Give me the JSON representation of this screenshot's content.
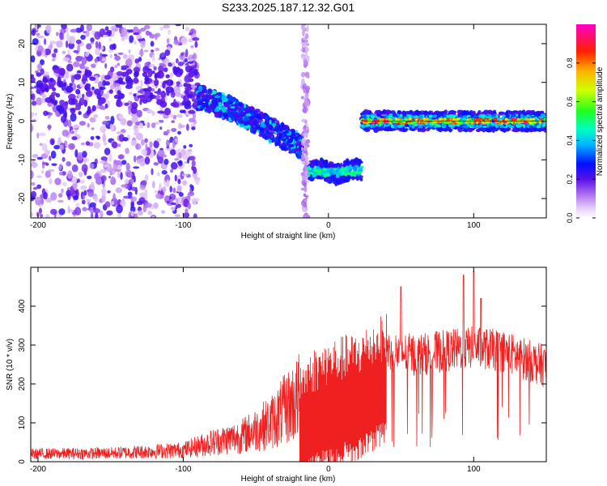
{
  "title": "S233.2025.187.12.32.G01",
  "chart_data": [
    {
      "type": "heatmap",
      "xlabel": "Height of straight line (km)",
      "ylabel": "Frequency (Hz)",
      "xlim": [
        -205,
        150
      ],
      "ylim": [
        -25,
        25
      ],
      "x_ticks": [
        -200,
        -100,
        0,
        100
      ],
      "y_ticks": [
        -20,
        -10,
        0,
        10,
        20
      ],
      "colorbar": {
        "label": "Normalized spectral amplitude",
        "range": [
          0,
          1
        ],
        "ticks": [
          "0.0",
          "0.2",
          "0.4",
          "0.6",
          "0.8"
        ]
      },
      "regions": [
        {
          "name": "scattered-noise",
          "x": [
            -205,
            -90
          ],
          "freq": [
            -25,
            25
          ],
          "amplitude": 0.25
        },
        {
          "name": "descending-band",
          "x": [
            -90,
            -18
          ],
          "freq_start": 6,
          "freq_end": -7,
          "amplitude": 0.35
        },
        {
          "name": "vertical-streak",
          "x": [
            -18,
            -14
          ],
          "freq": [
            -25,
            25
          ],
          "amplitude": 0.1
        },
        {
          "name": "negative-offset-band",
          "x": [
            -13,
            23
          ],
          "freq": -13,
          "amplitude": 0.45
        },
        {
          "name": "zero-frequency-line",
          "x": [
            23,
            150
          ],
          "freq": 0,
          "amplitude": 0.85
        }
      ]
    },
    {
      "type": "line",
      "xlabel": "Height of straight line (km)",
      "ylabel": "SNR (10 * v/v)",
      "xlim": [
        -205,
        150
      ],
      "ylim": [
        0,
        500
      ],
      "x_ticks": [
        -200,
        -100,
        0,
        100
      ],
      "y_ticks": [
        0,
        100,
        200,
        300,
        400
      ],
      "color": "#ee2020",
      "trend": [
        {
          "x": -205,
          "y": 20
        },
        {
          "x": -150,
          "y": 22
        },
        {
          "x": -100,
          "y": 30
        },
        {
          "x": -80,
          "y": 50
        },
        {
          "x": -60,
          "y": 65
        },
        {
          "x": -40,
          "y": 100
        },
        {
          "x": -25,
          "y": 150
        },
        {
          "x": -10,
          "y": 200
        },
        {
          "x": 0,
          "y": 220
        },
        {
          "x": 20,
          "y": 240
        },
        {
          "x": 40,
          "y": 290
        },
        {
          "x": 60,
          "y": 280
        },
        {
          "x": 80,
          "y": 290
        },
        {
          "x": 100,
          "y": 300
        },
        {
          "x": 120,
          "y": 290
        },
        {
          "x": 150,
          "y": 250
        }
      ],
      "peaks": [
        {
          "x": 50,
          "y": 450
        },
        {
          "x": 100,
          "y": 490
        },
        {
          "x": 93,
          "y": 480
        },
        {
          "x": 105,
          "y": 420
        }
      ]
    }
  ]
}
